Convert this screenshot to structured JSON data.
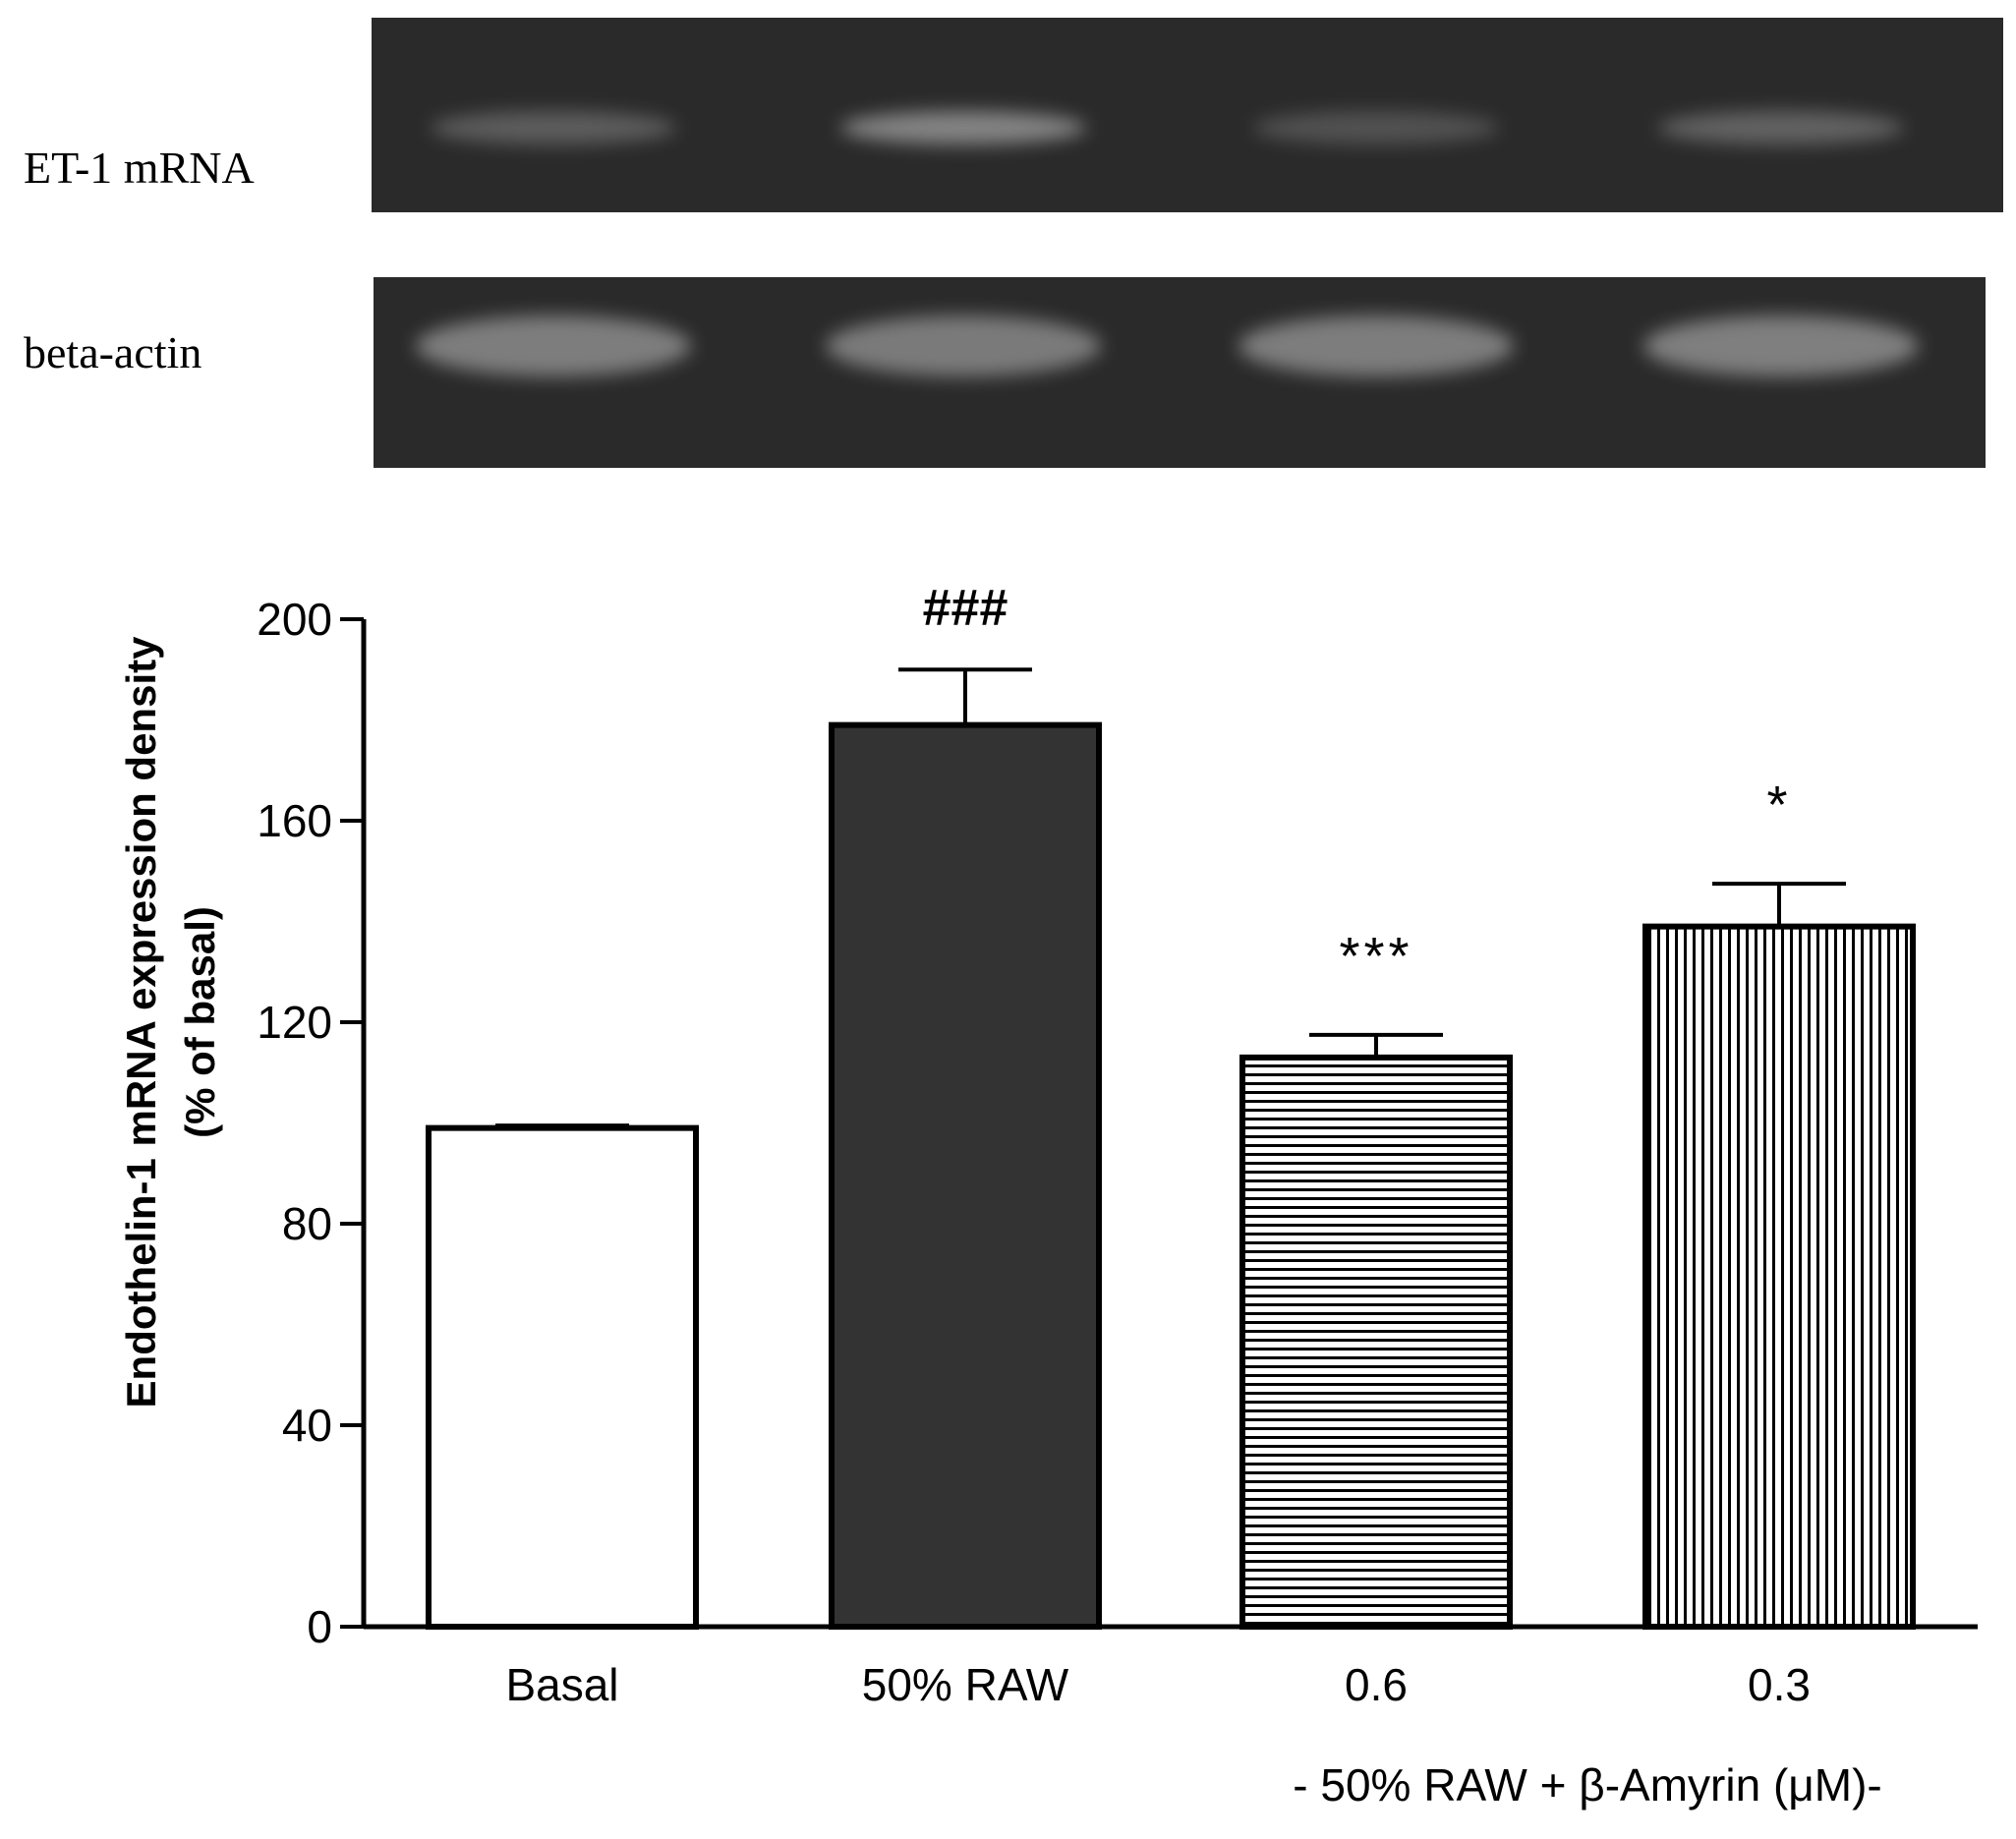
{
  "gel": {
    "rows": [
      {
        "label": "ET-1 mRNA",
        "band_intensity": [
          0.45,
          0.8,
          0.35,
          0.5
        ]
      },
      {
        "label": "beta-actin",
        "band_intensity": [
          0.75,
          0.72,
          0.74,
          0.76
        ]
      }
    ]
  },
  "chart_data": {
    "type": "bar",
    "categories": [
      "Basal",
      "50% RAW",
      "0.6",
      "0.3"
    ],
    "values": [
      99,
      179,
      113,
      139
    ],
    "errors": [
      0.5,
      11,
      4.5,
      8.5
    ],
    "annotations": [
      "",
      "###",
      "***",
      "*"
    ],
    "fills": [
      "white",
      "dark",
      "horizontal-hatch",
      "vertical-hatch"
    ],
    "title": "",
    "xlabel": "",
    "ylabel": "Endothelin-1 mRNA expression density",
    "ylabel_sub": "(% of basal)",
    "ylim": [
      0,
      200
    ],
    "yticks": [
      0,
      40,
      80,
      120,
      160,
      200
    ],
    "group_label": "- 50% RAW + β-Amyrin (μM)-",
    "grid": false,
    "colors": {
      "dark_bar": "#333333",
      "gel_bg": "#2a2a2a",
      "band": "#9a9a9a"
    }
  }
}
